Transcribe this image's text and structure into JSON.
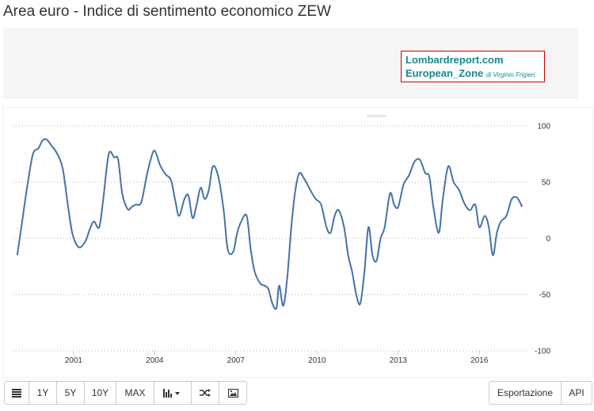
{
  "page": {
    "title": "Area euro - Indice di sentimento economico ZEW"
  },
  "banner": {
    "line1": "Lombardreport.com",
    "line2": "European_Zone",
    "line2_small": "di Virginio Frigieri",
    "border_color": "#cc0000",
    "text_color": "#16888c"
  },
  "toolbar": {
    "table_icon": "table-icon",
    "btn_1y": "1Y",
    "btn_5y": "5Y",
    "btn_10y": "10Y",
    "btn_max": "MAX",
    "chart_type_icon": "bar-chart-icon",
    "chart_type_caret": "caret-down-icon",
    "compare_icon": "shuffle-icon",
    "image_icon": "image-icon",
    "export_label": "Esportazione",
    "api_label": "API"
  },
  "chart_data": {
    "type": "line",
    "title": "Area euro - Indice di sentimento economico ZEW",
    "xlabel": "",
    "ylabel": "",
    "x_ticks": [
      "2001",
      "2004",
      "2007",
      "2010",
      "2013",
      "2016"
    ],
    "y_ticks": [
      100,
      50,
      0,
      -50,
      -100
    ],
    "ylim": [
      -100,
      100
    ],
    "xlim": [
      1998.75,
      2017.75
    ],
    "grid": "horizontal dotted",
    "y_axis_position": "right",
    "line_color": "#4572a7",
    "series": [
      {
        "x": [
          1998.92,
          1999.1,
          1999.3,
          1999.5,
          1999.7,
          1999.85,
          2000.0,
          2000.2,
          2000.4,
          2000.6,
          2000.8,
          2000.95,
          2001.1,
          2001.25,
          2001.45,
          2001.6,
          2001.75,
          2001.95,
          2002.1,
          2002.3,
          2002.5,
          2002.65,
          2002.8,
          2003.0,
          2003.15,
          2003.3,
          2003.5,
          2003.7,
          2003.85,
          2004.0,
          2004.2,
          2004.4,
          2004.6,
          2004.75,
          2004.9,
          2005.1,
          2005.25,
          2005.4,
          2005.55,
          2005.7,
          2005.85,
          2006.0,
          2006.15,
          2006.35,
          2006.55,
          2006.7,
          2006.9,
          2007.05,
          2007.2,
          2007.4,
          2007.55,
          2007.7,
          2007.9,
          2008.05,
          2008.2,
          2008.35,
          2008.5,
          2008.6,
          2008.75,
          2008.9,
          2009.05,
          2009.2,
          2009.35,
          2009.55,
          2009.75,
          2009.95,
          2010.15,
          2010.35,
          2010.5,
          2010.65,
          2010.8,
          2011.0,
          2011.15,
          2011.3,
          2011.45,
          2011.6,
          2011.75,
          2011.9,
          2012.05,
          2012.2,
          2012.35,
          2012.5,
          2012.7,
          2012.85,
          2013.0,
          2013.2,
          2013.4,
          2013.6,
          2013.8,
          2014.0,
          2014.15,
          2014.3,
          2014.5,
          2014.65,
          2014.85,
          2015.05,
          2015.25,
          2015.45,
          2015.65,
          2015.85,
          2016.0,
          2016.2,
          2016.35,
          2016.5,
          2016.65,
          2016.8,
          2017.0,
          2017.2,
          2017.4,
          2017.58
        ],
        "y": [
          -15,
          15,
          48,
          75,
          80,
          87,
          88,
          82,
          75,
          62,
          28,
          5,
          -5,
          -8,
          -2,
          8,
          15,
          10,
          35,
          75,
          72,
          70,
          40,
          26,
          28,
          30,
          32,
          55,
          70,
          78,
          65,
          57,
          52,
          35,
          20,
          35,
          38,
          18,
          30,
          45,
          35,
          43,
          64,
          55,
          25,
          -10,
          -12,
          5,
          15,
          20,
          -10,
          -30,
          -40,
          -42,
          -45,
          -58,
          -62,
          -42,
          -60,
          -35,
          10,
          43,
          58,
          52,
          43,
          35,
          30,
          10,
          5,
          20,
          25,
          10,
          -15,
          -30,
          -50,
          -58,
          -30,
          10,
          -15,
          -20,
          0,
          10,
          40,
          30,
          28,
          48,
          56,
          68,
          70,
          58,
          55,
          28,
          5,
          35,
          64,
          50,
          43,
          31,
          25,
          30,
          10,
          20,
          10,
          -15,
          5,
          15,
          20,
          35,
          36,
          28
        ]
      }
    ]
  }
}
